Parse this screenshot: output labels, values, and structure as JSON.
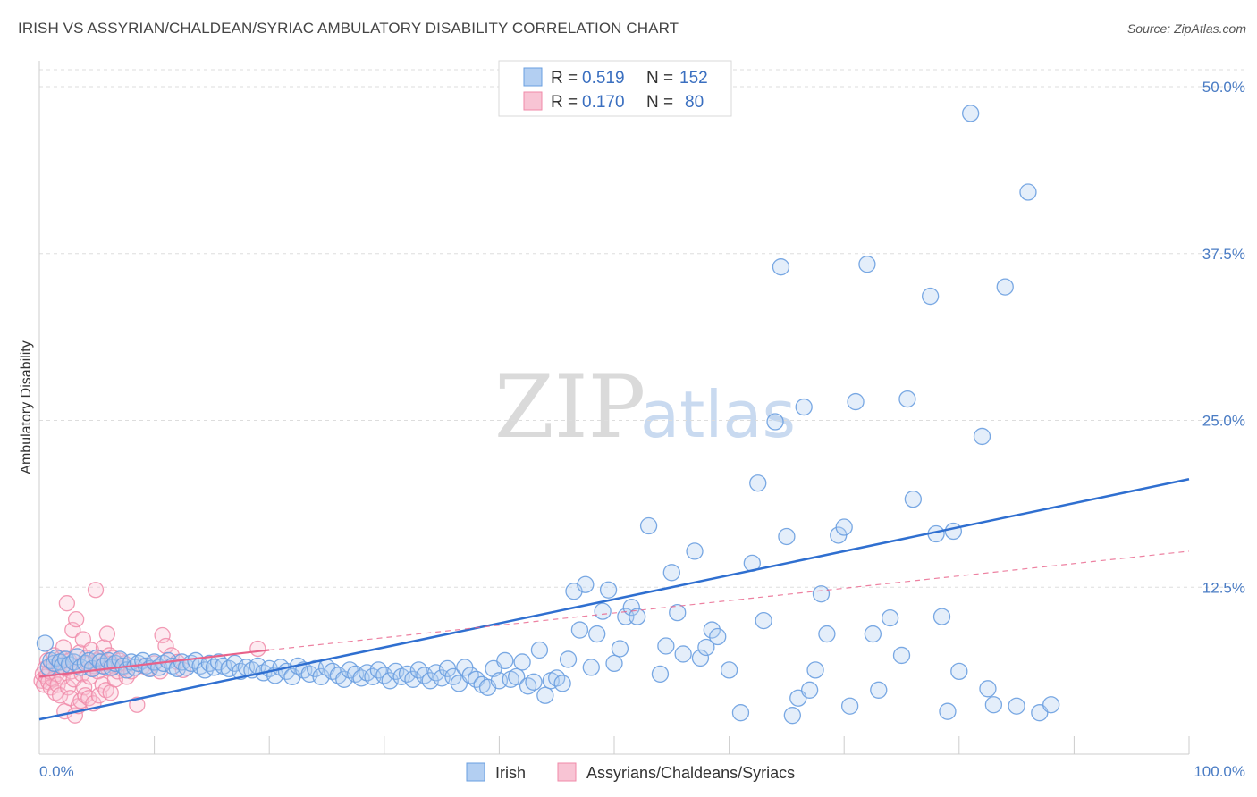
{
  "title": "IRISH VS ASSYRIAN/CHALDEAN/SYRIAC AMBULATORY DISABILITY CORRELATION CHART",
  "source": "Source: ZipAtlas.com",
  "watermark": {
    "zip": "ZIP",
    "atlas": "atlas"
  },
  "colors": {
    "irish": "#6a9fe0",
    "irish_fill": "#b3cff2",
    "irish_line": "#2f6fd0",
    "assyrian": "#f08aa8",
    "assyrian_fill": "#f8c4d4",
    "assyrian_line": "#e8628a",
    "grid": "#dddddd",
    "tick_label": "#4a7cc4"
  },
  "legend": {
    "rows": [
      {
        "r_label": "R = ",
        "r_value": "0.519",
        "n_label": "N = ",
        "n_value": "152"
      },
      {
        "r_label": "R = ",
        "r_value": "0.170",
        "n_label": "N = ",
        "n_value": "80"
      }
    ]
  },
  "chart_data": {
    "type": "scatter",
    "title": "IRISH VS ASSYRIAN/CHALDEAN/SYRIAC AMBULATORY DISABILITY CORRELATION CHART",
    "ylabel": "Ambulatory Disability",
    "xlabel": "",
    "xlim": [
      0,
      100
    ],
    "ylim": [
      0,
      52
    ],
    "x_tick_labels": {
      "min": "0.0%",
      "max": "100.0%"
    },
    "y_ticks": [
      {
        "value": 12.5,
        "label": "12.5%"
      },
      {
        "value": 25.0,
        "label": "25.0%"
      },
      {
        "value": 37.5,
        "label": "37.5%"
      },
      {
        "value": 50.0,
        "label": "50.0%"
      }
    ],
    "grid": true,
    "legend_position": "top-center",
    "series": [
      {
        "name": "Irish",
        "R": 0.519,
        "N": 152,
        "trend": {
          "x0": 0,
          "y0": 2.6,
          "x1": 100,
          "y1": 20.6
        },
        "points": [
          [
            0.5,
            8.3
          ],
          [
            0.8,
            6.5
          ],
          [
            1.0,
            7.0
          ],
          [
            1.3,
            6.8
          ],
          [
            1.5,
            7.2
          ],
          [
            1.8,
            6.9
          ],
          [
            2.0,
            6.6
          ],
          [
            2.3,
            7.1
          ],
          [
            2.6,
            6.7
          ],
          [
            3.0,
            6.9
          ],
          [
            3.3,
            7.3
          ],
          [
            3.6,
            6.5
          ],
          [
            4.0,
            6.8
          ],
          [
            4.3,
            7.0
          ],
          [
            4.6,
            6.4
          ],
          [
            5.0,
            7.2
          ],
          [
            5.3,
            6.9
          ],
          [
            5.6,
            6.6
          ],
          [
            6.0,
            7.0
          ],
          [
            6.3,
            6.5
          ],
          [
            6.6,
            6.8
          ],
          [
            7.0,
            7.1
          ],
          [
            7.3,
            6.6
          ],
          [
            7.6,
            6.3
          ],
          [
            8.0,
            6.9
          ],
          [
            8.3,
            6.5
          ],
          [
            8.6,
            6.8
          ],
          [
            9.0,
            7.0
          ],
          [
            9.3,
            6.6
          ],
          [
            9.6,
            6.4
          ],
          [
            10.0,
            6.9
          ],
          [
            10.4,
            6.5
          ],
          [
            10.8,
            6.8
          ],
          [
            11.2,
            7.0
          ],
          [
            11.6,
            6.6
          ],
          [
            12.0,
            6.4
          ],
          [
            12.4,
            6.9
          ],
          [
            12.8,
            6.5
          ],
          [
            13.2,
            6.8
          ],
          [
            13.6,
            7.0
          ],
          [
            14.0,
            6.6
          ],
          [
            14.4,
            6.3
          ],
          [
            14.8,
            6.8
          ],
          [
            15.2,
            6.5
          ],
          [
            15.6,
            6.9
          ],
          [
            16.0,
            6.6
          ],
          [
            16.5,
            6.4
          ],
          [
            17.0,
            6.8
          ],
          [
            17.5,
            6.2
          ],
          [
            18.0,
            6.5
          ],
          [
            18.5,
            6.3
          ],
          [
            19.0,
            6.6
          ],
          [
            19.5,
            6.1
          ],
          [
            20.0,
            6.4
          ],
          [
            20.5,
            5.9
          ],
          [
            21.0,
            6.5
          ],
          [
            21.5,
            6.2
          ],
          [
            22.0,
            5.8
          ],
          [
            22.5,
            6.6
          ],
          [
            23.0,
            6.3
          ],
          [
            23.5,
            6.0
          ],
          [
            24.0,
            6.4
          ],
          [
            24.5,
            5.8
          ],
          [
            25.0,
            6.5
          ],
          [
            25.5,
            6.2
          ],
          [
            26.0,
            5.9
          ],
          [
            26.5,
            5.6
          ],
          [
            27.0,
            6.3
          ],
          [
            27.5,
            6.0
          ],
          [
            28.0,
            5.7
          ],
          [
            28.5,
            6.1
          ],
          [
            29.0,
            5.8
          ],
          [
            29.5,
            6.3
          ],
          [
            30.0,
            5.9
          ],
          [
            30.5,
            5.5
          ],
          [
            31.0,
            6.2
          ],
          [
            31.5,
            5.8
          ],
          [
            32.0,
            6.0
          ],
          [
            32.5,
            5.6
          ],
          [
            33.0,
            6.3
          ],
          [
            33.5,
            5.9
          ],
          [
            34.0,
            5.5
          ],
          [
            34.5,
            6.1
          ],
          [
            35.0,
            5.7
          ],
          [
            35.5,
            6.4
          ],
          [
            36.0,
            5.8
          ],
          [
            36.5,
            5.3
          ],
          [
            37.0,
            6.5
          ],
          [
            37.5,
            5.9
          ],
          [
            38.0,
            5.6
          ],
          [
            38.5,
            5.2
          ],
          [
            39.0,
            5.0
          ],
          [
            39.5,
            6.4
          ],
          [
            40.0,
            5.5
          ],
          [
            40.5,
            7.0
          ],
          [
            41.0,
            5.6
          ],
          [
            41.5,
            5.8
          ],
          [
            42.0,
            6.9
          ],
          [
            42.5,
            5.1
          ],
          [
            43.0,
            5.4
          ],
          [
            43.5,
            7.8
          ],
          [
            44.0,
            4.4
          ],
          [
            44.5,
            5.5
          ],
          [
            45.0,
            5.7
          ],
          [
            45.5,
            5.3
          ],
          [
            46.0,
            7.1
          ],
          [
            46.5,
            12.2
          ],
          [
            47.0,
            9.3
          ],
          [
            47.5,
            12.7
          ],
          [
            48.0,
            6.5
          ],
          [
            48.5,
            9.0
          ],
          [
            49.0,
            10.7
          ],
          [
            49.5,
            12.3
          ],
          [
            50.0,
            6.8
          ],
          [
            50.5,
            7.9
          ],
          [
            51.0,
            10.3
          ],
          [
            51.5,
            11.0
          ],
          [
            52.0,
            10.3
          ],
          [
            53.0,
            17.1
          ],
          [
            54.0,
            6.0
          ],
          [
            54.5,
            8.1
          ],
          [
            55.0,
            13.6
          ],
          [
            55.5,
            10.6
          ],
          [
            56.0,
            7.5
          ],
          [
            57.0,
            15.2
          ],
          [
            57.5,
            7.2
          ],
          [
            58.0,
            8.0
          ],
          [
            58.5,
            9.3
          ],
          [
            59.0,
            8.8
          ],
          [
            60.0,
            6.3
          ],
          [
            61.0,
            3.1
          ],
          [
            62.0,
            14.3
          ],
          [
            62.5,
            20.3
          ],
          [
            63.0,
            10.0
          ],
          [
            64.0,
            24.9
          ],
          [
            64.5,
            36.5
          ],
          [
            65.0,
            16.3
          ],
          [
            65.5,
            2.9
          ],
          [
            66.0,
            4.2
          ],
          [
            66.5,
            26.0
          ],
          [
            67.0,
            4.8
          ],
          [
            67.5,
            6.3
          ],
          [
            68.0,
            12.0
          ],
          [
            68.5,
            9.0
          ],
          [
            69.5,
            16.4
          ],
          [
            70.0,
            17.0
          ],
          [
            70.5,
            3.6
          ],
          [
            71.0,
            26.4
          ],
          [
            72.0,
            36.7
          ],
          [
            72.5,
            9.0
          ],
          [
            73.0,
            4.8
          ],
          [
            74.0,
            10.2
          ],
          [
            75.0,
            7.4
          ],
          [
            75.5,
            26.6
          ],
          [
            76.0,
            19.1
          ],
          [
            77.5,
            34.3
          ],
          [
            78.0,
            16.5
          ],
          [
            78.5,
            10.3
          ],
          [
            79.0,
            3.2
          ],
          [
            79.5,
            16.7
          ],
          [
            80.0,
            6.2
          ],
          [
            81.0,
            48.0
          ],
          [
            82.0,
            23.8
          ],
          [
            82.5,
            4.9
          ],
          [
            83.0,
            3.7
          ],
          [
            84.0,
            35.0
          ],
          [
            85.0,
            3.6
          ],
          [
            86.0,
            42.1
          ],
          [
            87.0,
            3.1
          ],
          [
            88.0,
            3.7
          ]
        ]
      },
      {
        "name": "Assyrians/Chaldeans/Syriacs",
        "R": 0.17,
        "N": 80,
        "trend_solid": {
          "x0": 0,
          "y0": 5.8,
          "x1": 20,
          "y1": 7.8
        },
        "trend_dashed": {
          "x0": 20,
          "y0": 7.8,
          "x1": 100,
          "y1": 15.2
        },
        "points": [
          [
            0.2,
            5.5
          ],
          [
            0.3,
            6.0
          ],
          [
            0.4,
            5.2
          ],
          [
            0.5,
            6.4
          ],
          [
            0.6,
            5.8
          ],
          [
            0.7,
            7.0
          ],
          [
            0.8,
            5.4
          ],
          [
            0.9,
            6.2
          ],
          [
            1.0,
            5.0
          ],
          [
            1.1,
            6.8
          ],
          [
            1.2,
            5.6
          ],
          [
            1.3,
            7.4
          ],
          [
            1.4,
            4.6
          ],
          [
            1.5,
            6.0
          ],
          [
            1.6,
            5.2
          ],
          [
            1.7,
            6.6
          ],
          [
            1.8,
            4.4
          ],
          [
            1.9,
            7.2
          ],
          [
            2.0,
            5.8
          ],
          [
            2.1,
            8.0
          ],
          [
            2.2,
            3.2
          ],
          [
            2.3,
            6.4
          ],
          [
            2.4,
            11.3
          ],
          [
            2.5,
            5.0
          ],
          [
            2.6,
            7.0
          ],
          [
            2.7,
            4.2
          ],
          [
            2.8,
            6.2
          ],
          [
            2.9,
            9.3
          ],
          [
            3.0,
            5.6
          ],
          [
            3.1,
            2.9
          ],
          [
            3.2,
            10.1
          ],
          [
            3.3,
            6.6
          ],
          [
            3.4,
            3.6
          ],
          [
            3.5,
            7.6
          ],
          [
            3.6,
            4.0
          ],
          [
            3.7,
            6.0
          ],
          [
            3.8,
            8.6
          ],
          [
            3.9,
            5.0
          ],
          [
            4.0,
            4.4
          ],
          [
            4.1,
            7.2
          ],
          [
            4.2,
            6.8
          ],
          [
            4.3,
            4.2
          ],
          [
            4.4,
            5.8
          ],
          [
            4.5,
            7.8
          ],
          [
            4.6,
            6.4
          ],
          [
            4.7,
            3.8
          ],
          [
            4.8,
            6.6
          ],
          [
            4.9,
            12.3
          ],
          [
            5.0,
            7.0
          ],
          [
            5.1,
            6.2
          ],
          [
            5.2,
            4.4
          ],
          [
            5.3,
            7.2
          ],
          [
            5.4,
            6.6
          ],
          [
            5.5,
            5.2
          ],
          [
            5.6,
            8.0
          ],
          [
            5.7,
            6.8
          ],
          [
            5.8,
            4.8
          ],
          [
            5.9,
            9.0
          ],
          [
            6.0,
            6.4
          ],
          [
            6.1,
            7.4
          ],
          [
            6.2,
            4.6
          ],
          [
            6.3,
            6.8
          ],
          [
            6.4,
            7.2
          ],
          [
            6.5,
            6.6
          ],
          [
            6.6,
            5.6
          ],
          [
            6.8,
            6.2
          ],
          [
            7.0,
            7.0
          ],
          [
            7.2,
            6.4
          ],
          [
            7.4,
            6.8
          ],
          [
            7.6,
            5.8
          ],
          [
            8.0,
            6.2
          ],
          [
            8.5,
            3.7
          ],
          [
            9.0,
            6.6
          ],
          [
            9.5,
            6.4
          ],
          [
            10.0,
            6.8
          ],
          [
            10.5,
            6.2
          ],
          [
            10.7,
            8.9
          ],
          [
            11.0,
            8.1
          ],
          [
            11.5,
            7.4
          ],
          [
            12.0,
            6.9
          ],
          [
            12.5,
            6.3
          ],
          [
            19.0,
            7.9
          ]
        ]
      }
    ]
  }
}
